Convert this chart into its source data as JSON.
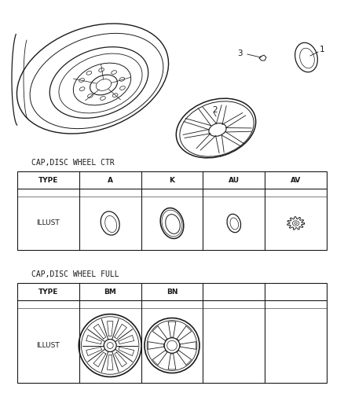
{
  "bg_color": "#ffffff",
  "table1_title": "CAP,DISC WHEEL CTR",
  "table2_title": "CAP,DISC WHEEL FULL",
  "table1_headers": [
    "TYPE",
    "A",
    "K",
    "AU",
    "AV"
  ],
  "table1_row_label": "ILLUST",
  "table2_headers": [
    "TYPE",
    "BM",
    "BN",
    "",
    ""
  ],
  "table2_row_label": "ILLUST",
  "line_color": "#1a1a1a",
  "text_color": "#1a1a1a",
  "font_size_label": 6.5,
  "font_size_header": 6.5,
  "font_size_callout": 7.5,
  "fig_w": 4.38,
  "fig_h": 5.33,
  "dpi": 100
}
